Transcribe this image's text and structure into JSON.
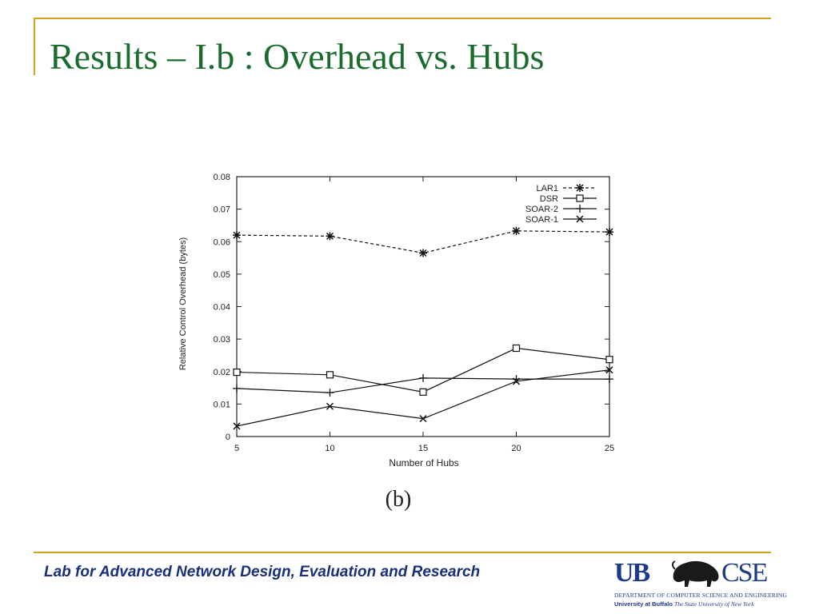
{
  "slide": {
    "title": "Results – I.b : Overhead vs. Hubs",
    "footer": "Lab for Advanced Network Design, Evaluation and Research",
    "accent_color": "#d4a21c",
    "title_color": "#1a6b2e",
    "footer_color": "#1a2f7a"
  },
  "logo": {
    "left_mark": "UB",
    "right_mark": "CSE",
    "department": "Department of Computer Science and Engineering",
    "university_bold": "University at Buffalo",
    "university_italic": "The State University of New York",
    "icon": "buffalo-icon"
  },
  "chart_data": {
    "type": "line",
    "caption": "(b)",
    "xlabel": "Number of Hubs",
    "ylabel": "Relative Control Overhead (bytes)",
    "x": [
      5,
      10,
      15,
      20,
      25
    ],
    "xlim": [
      5,
      25
    ],
    "ylim": [
      0,
      0.08
    ],
    "x_ticks": [
      "5",
      "10",
      "15",
      "20",
      "25"
    ],
    "y_ticks": [
      "0",
      "0.01",
      "0.02",
      "0.03",
      "0.04",
      "0.05",
      "0.06",
      "0.07",
      "0.08"
    ],
    "grid": false,
    "legend_position": "top-right",
    "series": [
      {
        "name": "LAR1",
        "marker": "star",
        "dash": "4,3",
        "values": [
          0.062,
          0.0617,
          0.0565,
          0.0633,
          0.063
        ]
      },
      {
        "name": "DSR",
        "marker": "square",
        "dash": "",
        "values": [
          0.0198,
          0.019,
          0.0137,
          0.0272,
          0.0237
        ]
      },
      {
        "name": "SOAR-2",
        "marker": "plus",
        "dash": "",
        "values": [
          0.0148,
          0.0135,
          0.018,
          0.0177,
          0.0177
        ]
      },
      {
        "name": "SOAR-1",
        "marker": "x",
        "dash": "",
        "values": [
          0.0032,
          0.0093,
          0.0055,
          0.017,
          0.0205
        ]
      }
    ]
  }
}
